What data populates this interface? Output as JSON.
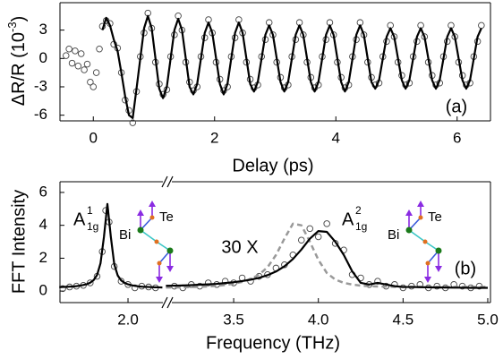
{
  "chart_data": [
    {
      "type": "line",
      "xlabel": "Delay (ps)",
      "ylabel": [
        "ΔR/R (10",
        "-3",
        ")"
      ],
      "annotation": "(a)",
      "xlim": [
        -0.55,
        6.55
      ],
      "ylim": [
        -6.6,
        5.9
      ],
      "xticks": [
        0,
        2,
        4,
        6
      ],
      "yticks": [
        -6,
        -3,
        0,
        3
      ],
      "x": [
        0.15,
        0.2125,
        0.275,
        0.3375,
        0.4,
        0.4625,
        0.525,
        0.5875,
        0.65,
        0.7125,
        0.775,
        0.8375,
        0.9,
        0.9625,
        1.025,
        1.0875,
        1.15,
        1.2125,
        1.275,
        1.3375,
        1.4,
        1.4625,
        1.525,
        1.5875,
        1.65,
        1.7125,
        1.775,
        1.8375,
        1.9,
        1.9625,
        2.025,
        2.0875,
        2.15,
        2.2125,
        2.275,
        2.3375,
        2.4,
        2.4625,
        2.525,
        2.5875,
        2.65,
        2.7125,
        2.775,
        2.8375,
        2.9,
        2.9625,
        3.025,
        3.0875,
        3.15,
        3.2125,
        3.275,
        3.3375,
        3.4,
        3.4625,
        3.525,
        3.5875,
        3.65,
        3.7125,
        3.775,
        3.8375,
        3.9,
        3.9625,
        4.025,
        4.0875,
        4.15,
        4.2125,
        4.275,
        4.3375,
        4.4,
        4.4625,
        4.525,
        4.5875,
        4.65,
        4.7125,
        4.775,
        4.8375,
        4.9,
        4.9625,
        5.025,
        5.0875,
        5.15,
        5.2125,
        5.275,
        5.3375,
        5.4,
        5.4625,
        5.525,
        5.5875,
        5.65,
        5.7125,
        5.775,
        5.8375,
        5.9,
        5.9625,
        6.025,
        6.0875,
        6.15,
        6.2125,
        6.275,
        6.3375,
        6.4
      ],
      "series": [
        {
          "style": "circles",
          "color": "#444444",
          "values": [
            3.4,
            4.0,
            3.7,
            1.5,
            1.1,
            -1.5,
            -4.4,
            -5.5,
            -6.8,
            -3.5,
            0.2,
            2.7,
            4.8,
            3.2,
            -0.4,
            -2.7,
            -3.8,
            -3.3,
            0.2,
            2.5,
            4.5,
            3,
            -0.4,
            -2.5,
            -3.4,
            -3,
            0.2,
            2.2,
            4.1,
            2.7,
            -0.4,
            -2.2,
            -3.4,
            -3,
            0.2,
            2.2,
            4.1,
            2.7,
            -0.4,
            -2.2,
            -3.1,
            -2.8,
            0.2,
            2,
            3.8,
            2.5,
            -0.4,
            -2,
            -3.1,
            -2.8,
            0.2,
            2,
            3.8,
            2.5,
            -0.4,
            -2,
            -3.1,
            -2.8,
            0.2,
            2,
            3.8,
            2.5,
            -0.4,
            -2,
            -3.1,
            -2.8,
            0.2,
            2,
            3.8,
            2.5,
            -0.4,
            -2,
            -2.8,
            -2.6,
            0.2,
            1.8,
            3.5,
            2.3,
            -0.4,
            -1.8,
            -2.8,
            -2.6,
            0.2,
            1.8,
            3.5,
            2.3,
            -0.4,
            -1.8,
            -2.8,
            -2.6,
            0.2,
            1.8,
            3.5,
            2.3,
            -0.4,
            -1.8,
            -2.8,
            -2.6,
            0.2,
            1.8,
            3.5
          ]
        },
        {
          "style": "circles",
          "color": "#444444",
          "x": [
            -0.45,
            -0.4,
            -0.35,
            -0.3,
            -0.25,
            -0.2,
            -0.15,
            -0.1,
            -0.05,
            0,
            0.05,
            0.1
          ],
          "values": [
            0.3,
            1,
            -0.5,
            0.8,
            -0.8,
            0.5,
            -1.2,
            -0.6,
            -2.5,
            -3,
            -1.5,
            1
          ]
        },
        {
          "style": "line",
          "color": "#000000",
          "values": [
            3,
            4.3,
            3.5,
            2,
            0.8,
            -1.5,
            -4,
            -6,
            -6.3,
            -3.2,
            0,
            3.2,
            4.5,
            3.2,
            0,
            -3.2,
            -4.2,
            -3,
            0,
            3,
            4.2,
            3,
            0,
            -3,
            -3.8,
            -2.7,
            0,
            2.7,
            3.8,
            2.7,
            0,
            -2.7,
            -3.8,
            -2.7,
            0,
            2.7,
            3.8,
            2.7,
            0,
            -2.7,
            -3.5,
            -2.5,
            0,
            2.5,
            3.5,
            2.5,
            0,
            -2.5,
            -3.5,
            -2.5,
            0,
            2.5,
            3.5,
            2.5,
            0,
            -2.5,
            -3.5,
            -2.5,
            0,
            2.5,
            3.5,
            2.5,
            0,
            -2.5,
            -3.5,
            -2.5,
            0,
            2.5,
            3.5,
            2.5,
            0,
            -2.5,
            -3.2,
            -2.3,
            0,
            2.3,
            3.2,
            2.3,
            0,
            -2.3,
            -3.2,
            -2.3,
            0,
            2.3,
            3.2,
            2.3,
            0,
            -2.3,
            -3.2,
            -2.3,
            0,
            2.3,
            3.2,
            2.3,
            0,
            -2.3,
            -3.2,
            -2.3,
            0,
            2.3,
            3.2
          ]
        }
      ]
    },
    {
      "type": "line",
      "xlabel": "Frequency (THz)",
      "ylabel": [
        "FFT Intensity"
      ],
      "annotation": "(b)",
      "ylim": [
        -0.7,
        6.65
      ],
      "yticks": [
        0,
        2,
        4,
        6
      ],
      "peak_labels": [
        {
          "main": "A",
          "sub": "1g",
          "sup": "1"
        },
        {
          "main": "A",
          "sub": "1g",
          "sup": "2"
        }
      ],
      "multiplier": "30 X",
      "structures": [
        {
          "top": "Te",
          "side": "Bi"
        },
        {
          "top": "Te",
          "side": "Bi"
        }
      ],
      "segments": [
        {
          "xlim": [
            1.604,
            2.203
          ],
          "xticks": [
            {
              "value": 2,
              "label": "2.0"
            }
          ],
          "x": [
            1.6,
            1.62,
            1.64,
            1.66,
            1.68,
            1.7,
            1.72,
            1.74,
            1.76,
            1.78,
            1.8,
            1.82,
            1.84,
            1.86,
            1.88,
            1.9,
            1.92,
            1.94,
            1.96,
            1.98,
            2,
            2.02,
            2.04,
            2.06,
            2.08,
            2.1,
            2.12,
            2.14,
            2.16,
            2.18,
            2.2
          ],
          "series": [
            {
              "style": "circles",
              "color": "#444444",
              "x": [
                1.62,
                1.66,
                1.7,
                1.74,
                1.78,
                1.82,
                1.85,
                1.87,
                1.89,
                1.92,
                1.96,
                2,
                2.04,
                2.08,
                2.12,
                2.16
              ],
              "values": [
                0.15,
                0.25,
                0.3,
                0.35,
                0.5,
                0.9,
                2.4,
                4.9,
                4.2,
                1.5,
                0.6,
                0.4,
                0.2,
                0.3,
                0.25,
                0.2
              ]
            },
            {
              "style": "line",
              "color": "#000000",
              "values": [
                0.24,
                0.25,
                0.26,
                0.27,
                0.28,
                0.3,
                0.33,
                0.37,
                0.42,
                0.51,
                0.67,
                0.98,
                1.69,
                3.3,
                5.3,
                3.3,
                1.63,
                0.95,
                0.65,
                0.5,
                0.41,
                0.36,
                0.32,
                0.29,
                0.27,
                0.26,
                0.25,
                0.24,
                0.23,
                0.23,
                0.22
              ]
            }
          ]
        },
        {
          "xlim": [
            3.135,
            5.016
          ],
          "xticks": [
            3.5,
            {
              "value": 4,
              "label": "4.0"
            },
            4.5,
            {
              "value": 5,
              "label": "5.0"
            }
          ],
          "x": [
            3.1,
            3.15,
            3.2,
            3.25,
            3.3,
            3.35,
            3.4,
            3.45,
            3.5,
            3.55,
            3.6,
            3.65,
            3.7,
            3.75,
            3.8,
            3.85,
            3.9,
            3.95,
            4,
            4.05,
            4.1,
            4.15,
            4.2,
            4.25,
            4.3,
            4.35,
            4.4,
            4.45,
            4.5,
            4.55,
            4.6,
            4.65,
            4.7,
            4.75,
            4.8,
            4.85,
            4.9,
            4.95,
            5
          ],
          "series": [
            {
              "style": "circles",
              "color": "#444444",
              "x": [
                3.15,
                3.2,
                3.25,
                3.3,
                3.35,
                3.4,
                3.45,
                3.5,
                3.55,
                3.6,
                3.65,
                3.7,
                3.75,
                3.8,
                3.85,
                3.9,
                3.95,
                4,
                4.05,
                4.1,
                4.15,
                4.2,
                4.25,
                4.3,
                4.35,
                4.4,
                4.45,
                4.5,
                4.55,
                4.6,
                4.65,
                4.7,
                4.75,
                4.8,
                4.85,
                4.9,
                4.95
              ],
              "values": [
                0.3,
                0.2,
                0.4,
                0.3,
                0.5,
                0.4,
                0.6,
                0.5,
                0.8,
                0.6,
                0.9,
                1,
                1.4,
                1.6,
                2.2,
                3.1,
                3.8,
                3.3,
                4.1,
                2.9,
                2.5,
                1,
                0.8,
                0.4,
                0.6,
                0.3,
                0.4,
                0.2,
                0.3,
                0.4,
                0.2,
                0.3,
                0.2,
                0.4,
                0.3,
                0.2,
                0.3
              ]
            },
            {
              "style": "dashed",
              "color": "#999999",
              "values": [
                0.22,
                0.22,
                0.23,
                0.24,
                0.26,
                0.28,
                0.32,
                0.37,
                0.45,
                0.56,
                0.73,
                1,
                1.45,
                2.2,
                3.2,
                4.1,
                4,
                3,
                1.9,
                1.1,
                0.7,
                0.5,
                0.4,
                0.33,
                0.3,
                0.28,
                0.27,
                0.26,
                0.25,
                0.25,
                0.25,
                0.25,
                0.25,
                0.25,
                0.25,
                0.25,
                0.25,
                0.25,
                0.25
              ]
            },
            {
              "style": "line",
              "color": "#000000",
              "values": [
                0.32,
                0.33,
                0.34,
                0.36,
                0.39,
                0.41,
                0.44,
                0.49,
                0.54,
                0.61,
                0.69,
                0.81,
                0.97,
                1.19,
                1.51,
                1.95,
                2.53,
                3.19,
                3.65,
                3.6,
                3,
                2.2,
                1.2,
                0.5,
                0.4,
                0.5,
                0.4,
                0.3,
                0.25,
                0.25,
                0.24,
                0.23,
                0.22,
                0.22,
                0.21,
                0.21,
                0.2,
                0.2,
                0.2
              ]
            }
          ]
        }
      ]
    }
  ]
}
